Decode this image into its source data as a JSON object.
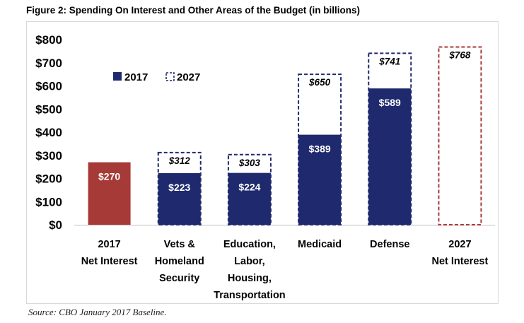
{
  "figure": {
    "title": "Figure 2: Spending On Interest and Other Areas of the Budget (in billions)",
    "source": "Source: CBO January 2017 Baseline."
  },
  "chart_data": {
    "type": "bar",
    "title": "Figure 2: Spending On Interest and Other Areas of the Budget (in billions)",
    "xlabel": "",
    "ylabel": "",
    "ylim": [
      0,
      800
    ],
    "y_ticks": [
      0,
      100,
      200,
      300,
      400,
      500,
      600,
      700,
      800
    ],
    "y_tick_labels": [
      "$0",
      "$100",
      "$200",
      "$300",
      "$400",
      "$500",
      "$600",
      "$700",
      "$800"
    ],
    "grid": false,
    "legend": {
      "position": "top-left",
      "entries": [
        {
          "name": "2017",
          "style": "solid"
        },
        {
          "name": "2027",
          "style": "dashed"
        }
      ]
    },
    "categories": [
      [
        "2017",
        "Net Interest"
      ],
      [
        "Vets &",
        "Homeland",
        "Security"
      ],
      [
        "Education,",
        "Labor,",
        "Housing,",
        "Transportation"
      ],
      [
        "Medicaid"
      ],
      [
        "Defense"
      ],
      [
        "2027",
        "Net Interest"
      ]
    ],
    "series": [
      {
        "name": "2017",
        "values": [
          270,
          223,
          224,
          389,
          589,
          null
        ],
        "labels": [
          "$270",
          "$223",
          "$224",
          "$389",
          "$589",
          ""
        ]
      },
      {
        "name": "2027",
        "values": [
          null,
          312,
          303,
          650,
          741,
          768
        ],
        "labels": [
          "",
          "$312",
          "$303",
          "$650",
          "$741",
          "$768"
        ]
      }
    ],
    "colors": {
      "solid_2017": "#1f2a6e",
      "net_interest_2017": "#a63a37",
      "dashed_2027": "#1f2a6e",
      "net_interest_2027_dashed": "#a63a37"
    }
  }
}
